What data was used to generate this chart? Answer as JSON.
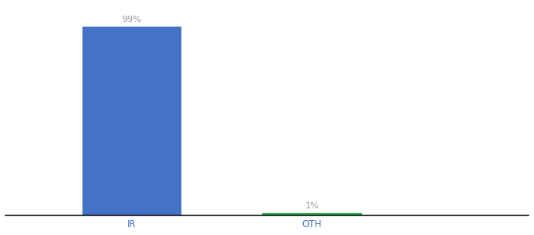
{
  "categories": [
    "IR",
    "OTH"
  ],
  "values": [
    99,
    1
  ],
  "bar_colors": [
    "#4472c4",
    "#22b14c"
  ],
  "labels": [
    "99%",
    "1%"
  ],
  "ylim": [
    0,
    110
  ],
  "background_color": "#ffffff",
  "label_color": "#999999",
  "label_fontsize": 8,
  "tick_fontsize": 8.5,
  "tick_color": "#4472c4",
  "bar_width": 0.55,
  "x_positions": [
    1,
    2
  ],
  "xlim": [
    0.3,
    3.2
  ]
}
